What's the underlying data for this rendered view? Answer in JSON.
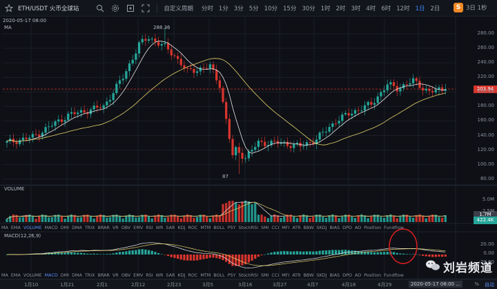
{
  "toolbar": {
    "symbol": "ETH/USDT 火币全球站",
    "custom": "自定义周期",
    "intervals": [
      "分时",
      "1分",
      "3分",
      "5分",
      "10分",
      "15分",
      "30分",
      "1时",
      "2时",
      "3时",
      "4时",
      "6时",
      "12时",
      "1日",
      "2日"
    ],
    "active_interval": "1日",
    "logo_glyph": "S",
    "overflow": "3日 1秒"
  },
  "overlay": {
    "timestamp": "2020-05-17 08:00",
    "ma_label": "MA",
    "high_label": "288.36",
    "low_label": "87",
    "current_price": "203.94",
    "volume_label": "VOLUME",
    "vol_tag_top": "1.7M",
    "vol_tag_current": "422.4K",
    "macd_label": "MACD(12,26,9)"
  },
  "price_axis": [
    "280.00",
    "260.00",
    "240.00",
    "220.00",
    "200.00",
    "180.00",
    "160.00",
    "140.00",
    "120.00",
    "100.00",
    "80.00"
  ],
  "volume_axis": [
    "5.0M",
    "2.5M"
  ],
  "macd_axis": [
    "20.00",
    "0.00",
    "-20.00"
  ],
  "indicators": [
    "MA",
    "EMA",
    "VOLUME",
    "MACD",
    "DMI",
    "DMA",
    "TRIX",
    "BRAR",
    "VR",
    "OBV",
    "EMV",
    "RSI",
    "WR",
    "SAR",
    "KDJ",
    "ROC",
    "MTM",
    "BOLL",
    "PSY",
    "StochRSI",
    "SMI",
    "CCI",
    "MFI",
    "ATR",
    "BBW",
    "SKDJ",
    "BIAS",
    "DPO",
    "AO",
    "Position",
    "Fundflow"
  ],
  "indicators_active_top": "VOLUME",
  "indicators_active_bottom": "MACD",
  "dates": [
    "1月10",
    "1月21",
    "2月1",
    "2月12",
    "2月23",
    "3月5",
    "3月16",
    "3月27",
    "4月7",
    "4月18",
    "4月29",
    "5月"
  ],
  "date_stamp": "2020-05-17 08:00 ...",
  "percent": "%",
  "auto": "自动",
  "watermark": "刘岩频道",
  "chart_data": {
    "type": "candlestick",
    "title": "ETH/USDT 火币全球站",
    "x_start": "2020-01-02",
    "x_end": "2020-05-17",
    "ylim": [
      75,
      298
    ],
    "high": 288.36,
    "low": 87,
    "last_price": 203.94,
    "series": [
      {
        "name": "close",
        "x": [
          "2020-01-02",
          "2020-01-10",
          "2020-01-21",
          "2020-02-01",
          "2020-02-07",
          "2020-02-12",
          "2020-02-15",
          "2020-02-20",
          "2020-02-23",
          "2020-02-27",
          "2020-03-05",
          "2020-03-08",
          "2020-03-12",
          "2020-03-13",
          "2020-03-16",
          "2020-03-20",
          "2020-03-27",
          "2020-04-02",
          "2020-04-07",
          "2020-04-13",
          "2020-04-18",
          "2020-04-24",
          "2020-04-29",
          "2020-05-02",
          "2020-05-07",
          "2020-05-12",
          "2020-05-17"
        ],
        "values": [
          130,
          138,
          168,
          180,
          220,
          265,
          275,
          262,
          250,
          228,
          235,
          210,
          112,
          120,
          110,
          130,
          130,
          125,
          135,
          160,
          172,
          183,
          210,
          205,
          215,
          200,
          203.94
        ]
      }
    ]
  }
}
